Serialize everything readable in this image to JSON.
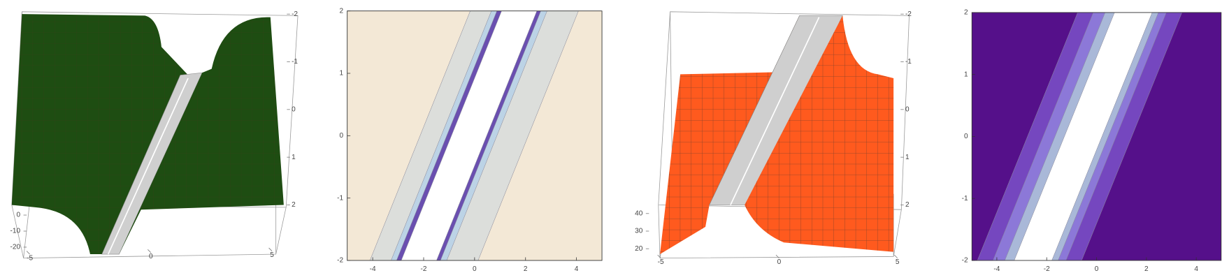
{
  "chart_data": [
    {
      "type": "surface3d",
      "color": "#1e4d12",
      "xticks": [
        -5,
        0,
        5
      ],
      "yticks": [
        0,
        -10,
        -20
      ],
      "zticks": [
        -2,
        -1,
        0,
        1,
        2
      ]
    },
    {
      "type": "contour",
      "xlim": [
        -5,
        5
      ],
      "ylim": [
        -2,
        2
      ],
      "xticks": [
        -4,
        -2,
        0,
        2,
        4
      ],
      "yticks": [
        -2,
        -1,
        0,
        1,
        2
      ]
    },
    {
      "type": "surface3d",
      "color": "#ff5a1e",
      "xticks": [
        -5,
        0,
        5
      ],
      "yticks": [
        40,
        30,
        20
      ],
      "zticks": [
        -2,
        -1,
        0,
        1,
        2
      ]
    },
    {
      "type": "contour",
      "xlim": [
        -5,
        5
      ],
      "ylim": [
        -2,
        2
      ],
      "xticks": [
        -4,
        -2,
        0,
        2,
        4
      ],
      "yticks": [
        -2,
        -1,
        0,
        1,
        2
      ]
    }
  ]
}
